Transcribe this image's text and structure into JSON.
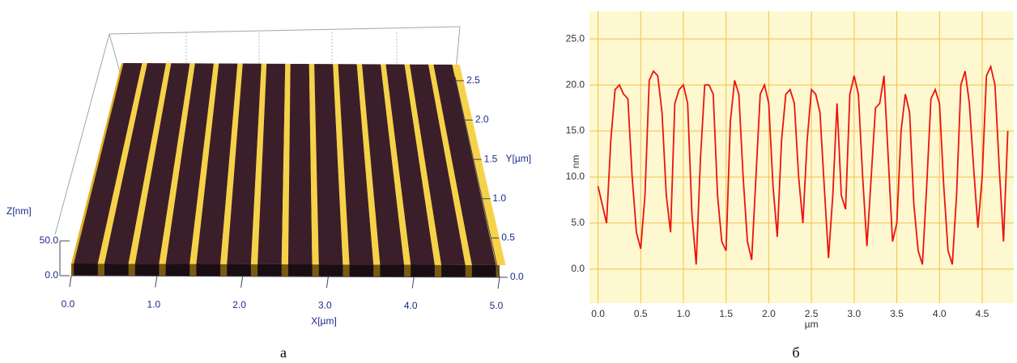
{
  "chart_data": [
    {
      "type": "surface3d",
      "caption": "а",
      "xlabel": "X[µm]",
      "ylabel": "Y[µm]",
      "zlabel": "Z[nm]",
      "xlim": [
        0,
        5
      ],
      "ylim": [
        0,
        2.55
      ],
      "zlim": [
        0,
        50
      ],
      "xticks": [
        {
          "value": 0,
          "label": "0.0"
        },
        {
          "value": 1,
          "label": "1.0"
        },
        {
          "value": 2,
          "label": "2.0"
        },
        {
          "value": 3,
          "label": "3.0"
        },
        {
          "value": 4,
          "label": "4.0"
        },
        {
          "value": 5,
          "label": "5.0"
        }
      ],
      "yticks": [
        {
          "value": 0,
          "label": "0.0"
        },
        0.5,
        {
          "value": 1,
          "label": "1.0"
        },
        1.5,
        {
          "value": 2,
          "label": "2.0"
        },
        2.5
      ],
      "zticks": [
        {
          "value": 0,
          "label": "0.0"
        },
        {
          "value": 50,
          "label": "50.0"
        }
      ]
    },
    {
      "type": "line",
      "caption": "б",
      "xlabel": "µm",
      "ylabel": "nm",
      "x": [
        0.0,
        0.05,
        0.1,
        0.15,
        0.2,
        0.25,
        0.3,
        0.35,
        0.4,
        0.45,
        0.5,
        0.55,
        0.6,
        0.65,
        0.7,
        0.75,
        0.8,
        0.85,
        0.9,
        0.95,
        1.0,
        1.05,
        1.1,
        1.15,
        1.2,
        1.25,
        1.3,
        1.35,
        1.4,
        1.45,
        1.5,
        1.55,
        1.6,
        1.65,
        1.7,
        1.75,
        1.8,
        1.85,
        1.9,
        1.95,
        2.0,
        2.05,
        2.1,
        2.15,
        2.2,
        2.25,
        2.3,
        2.35,
        2.4,
        2.45,
        2.5,
        2.55,
        2.6,
        2.65,
        2.7,
        2.75,
        2.8,
        2.85,
        2.9,
        2.95,
        3.0,
        3.05,
        3.1,
        3.15,
        3.2,
        3.25,
        3.3,
        3.35,
        3.4,
        3.45,
        3.5,
        3.55,
        3.6,
        3.65,
        3.7,
        3.75,
        3.8,
        3.85,
        3.9,
        3.95,
        4.0,
        4.05,
        4.1,
        4.15,
        4.2,
        4.25,
        4.3,
        4.35,
        4.4,
        4.45,
        4.5,
        4.55,
        4.6,
        4.65,
        4.7,
        4.75,
        4.8
      ],
      "series": [
        {
          "color": "#ee1111",
          "values": [
            9,
            7,
            5,
            14,
            19.5,
            20,
            19,
            18.5,
            10,
            4,
            2.2,
            8,
            20.5,
            21.5,
            21,
            17,
            8,
            4,
            18,
            19.5,
            20,
            18,
            6,
            0.5,
            12,
            20,
            20,
            19,
            8,
            3,
            2,
            16,
            20.5,
            19,
            10,
            3,
            1,
            10,
            19,
            20,
            18,
            9,
            3.5,
            14,
            19,
            19.5,
            18,
            10,
            5,
            14,
            19.5,
            19,
            17,
            9,
            1.2,
            8,
            18,
            8,
            6.5,
            19,
            21,
            19,
            10,
            2.5,
            10,
            17.5,
            18,
            21,
            12,
            3,
            5,
            15,
            19,
            17,
            7,
            2,
            0.5,
            9,
            18.5,
            19.5,
            18,
            9,
            2,
            0.5,
            8,
            20,
            21.5,
            18,
            11,
            4.5,
            10,
            21,
            22,
            20,
            11,
            3,
            15
          ]
        }
      ],
      "xlim": [
        -0.1,
        4.87
      ],
      "ylim": [
        -3.7,
        28
      ],
      "xticks": [
        {
          "value": 0,
          "label": "0.0"
        },
        0.5,
        {
          "value": 1,
          "label": "1.0"
        },
        1.5,
        {
          "value": 2,
          "label": "2.0"
        },
        2.5,
        {
          "value": 3,
          "label": "3.0"
        },
        3.5,
        {
          "value": 4,
          "label": "4.0"
        },
        4.5
      ],
      "yticks": [
        {
          "value": 0,
          "label": "0.0"
        },
        {
          "value": 5,
          "label": "5.0"
        },
        {
          "value": 10,
          "label": "10.0"
        },
        {
          "value": 15,
          "label": "15.0"
        },
        {
          "value": 20,
          "label": "20.0"
        },
        {
          "value": 25,
          "label": "25.0"
        }
      ],
      "grid": true
    }
  ]
}
